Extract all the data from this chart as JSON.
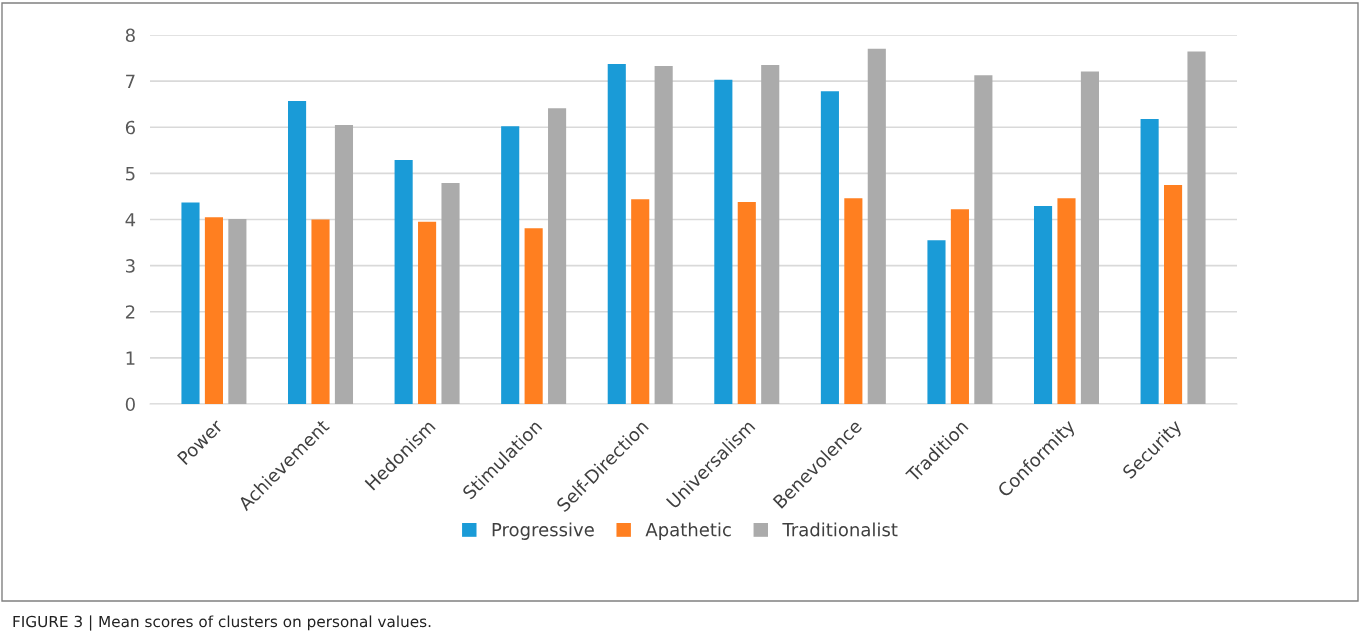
{
  "chart_data": {
    "type": "bar",
    "categories": [
      "Power",
      "Achievement",
      "Hedonism",
      "Stimulation",
      "Self-Direction",
      "Universalism",
      "Benevolence",
      "Tradition",
      "Conformity",
      "Security"
    ],
    "series": [
      {
        "name": "Progressive",
        "color": "#1a9bd7",
        "values": [
          4.37,
          6.57,
          5.29,
          6.02,
          7.37,
          7.03,
          6.78,
          3.55,
          4.29,
          6.18
        ]
      },
      {
        "name": "Apathetic",
        "color": "#ff7f20",
        "values": [
          4.05,
          4.0,
          3.95,
          3.81,
          4.44,
          4.38,
          4.46,
          4.22,
          4.46,
          4.75
        ]
      },
      {
        "name": "Traditionalist",
        "color": "#ababab",
        "values": [
          4.01,
          6.05,
          4.79,
          6.41,
          7.33,
          7.35,
          7.7,
          7.13,
          7.21,
          7.64
        ]
      }
    ],
    "ylim": [
      0,
      8
    ],
    "yticks": [
      0,
      1,
      2,
      3,
      4,
      5,
      6,
      7,
      8
    ],
    "grid": "y",
    "legend": "bottom",
    "annotations": [
      "FIGURE 3 | Mean scores of clusters on personal values."
    ]
  }
}
